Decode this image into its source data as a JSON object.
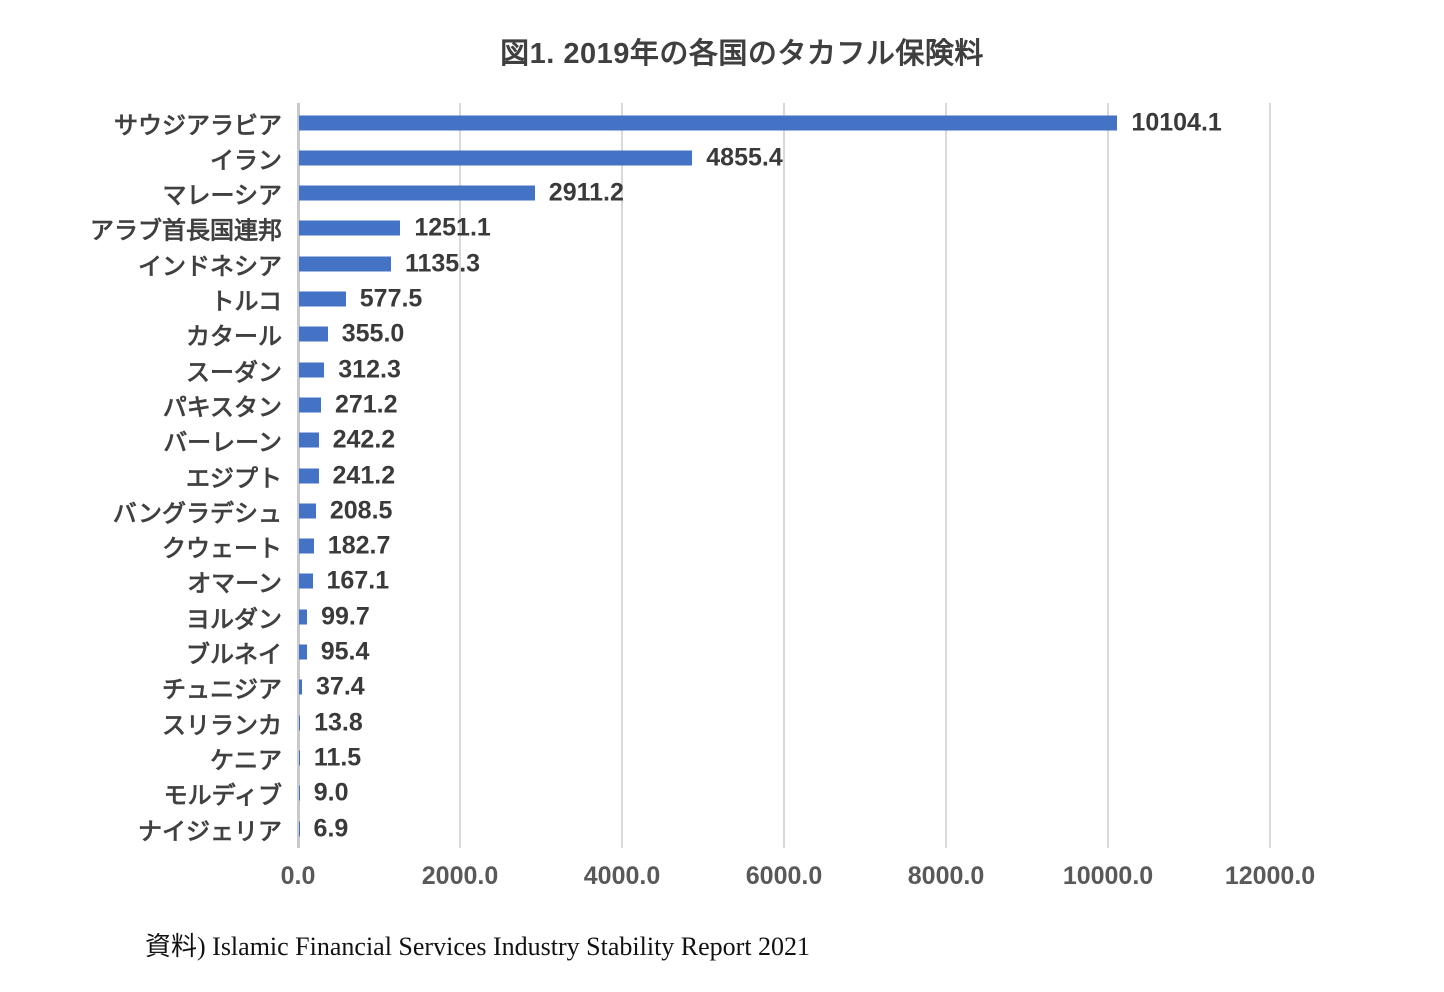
{
  "chart_data": {
    "type": "bar",
    "orientation": "horizontal",
    "title": "図1. 2019年の各国のタカフル保険料",
    "source": "資料) Islamic Financial Services Industry Stability Report 2021",
    "categories": [
      "サウジアラビア",
      "イラン",
      "マレーシア",
      "アラブ首長国連邦",
      "インドネシア",
      "トルコ",
      "カタール",
      "スーダン",
      "パキスタン",
      "バーレーン",
      "エジプト",
      "バングラデシュ",
      "クウェート",
      "オマーン",
      "ヨルダン",
      "ブルネイ",
      "チュニジア",
      "スリランカ",
      "ケニア",
      "モルディブ",
      "ナイジェリア"
    ],
    "values": [
      10104.1,
      4855.4,
      2911.2,
      1251.1,
      1135.3,
      577.5,
      355.0,
      312.3,
      271.2,
      242.2,
      241.2,
      208.5,
      182.7,
      167.1,
      99.7,
      95.4,
      37.4,
      13.8,
      11.5,
      9.0,
      6.9
    ],
    "value_labels": [
      "10104.1",
      "4855.4",
      "2911.2",
      "1251.1",
      "1135.3",
      "577.5",
      "355.0",
      "312.3",
      "271.2",
      "242.2",
      "241.2",
      "208.5",
      "182.7",
      "167.1",
      "99.7",
      "95.4",
      "37.4",
      "13.8",
      "11.5",
      "9.0",
      "6.9"
    ],
    "x_ticks": [
      "0.0",
      "2000.0",
      "4000.0",
      "6000.0",
      "8000.0",
      "10000.0",
      "12000.0"
    ],
    "x_tick_values": [
      0,
      2000,
      4000,
      6000,
      8000,
      10000,
      12000
    ],
    "xlim": [
      0,
      12000
    ],
    "grid": true,
    "legend": "none",
    "bar_color": "#4472C4",
    "gridline_color": "#D9D9D9",
    "axis_line_color": "#C9C9C9",
    "title_color": "#3F3F3F",
    "label_color": "#404040",
    "tick_color": "#595959"
  }
}
